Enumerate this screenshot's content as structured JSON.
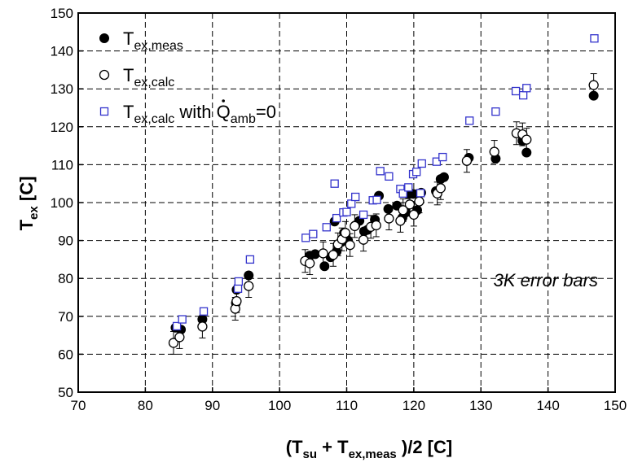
{
  "chart_data": {
    "type": "scatter",
    "title": "",
    "xlabel": {
      "pre": "(T",
      "sub1": "su",
      "mid": " + T",
      "sub2": "ex,meas",
      "post": " )/2 [C]"
    },
    "ylabel": {
      "pre": "T",
      "sub": "ex",
      "post": " [C]"
    },
    "xlim": [
      70,
      150
    ],
    "ylim": [
      50,
      150
    ],
    "xticks": [
      70,
      80,
      90,
      100,
      110,
      120,
      130,
      140,
      150
    ],
    "yticks": [
      50,
      60,
      70,
      80,
      90,
      100,
      110,
      120,
      130,
      140,
      150
    ],
    "grid": "dashed",
    "legend_position": "top-left",
    "annotation": "3K error bars",
    "error_bar": 3,
    "series": [
      {
        "name": "T_ex,meas",
        "label": {
          "pre": "T",
          "sub": "ex,meas",
          "post": ""
        },
        "marker": "filled-circle",
        "color": "#000000",
        "x": [
          84.5,
          85.3,
          88.5,
          93.5,
          93.6,
          95.4,
          104.5,
          105.3,
          106.7,
          107.6,
          108.2,
          108.5,
          109.2,
          109.6,
          110.2,
          111.3,
          111.9,
          112.6,
          113.1,
          114.2,
          114.8,
          116.2,
          117.5,
          118.3,
          118.8,
          119.2,
          119.9,
          120.5,
          121.1,
          123.3,
          124.0,
          124.5,
          128.2,
          132.2,
          136.2,
          136.8,
          146.8
        ],
        "y": [
          67.0,
          66.5,
          69.2,
          73.5,
          77.0,
          80.8,
          86.0,
          86.4,
          83.2,
          85.6,
          95.0,
          87.1,
          89.6,
          92.0,
          90.0,
          94.0,
          95.2,
          92.4,
          92.8,
          95.5,
          101.8,
          98.3,
          99.2,
          96.0,
          97.4,
          102.2,
          102.3,
          98.0,
          102.6,
          103.0,
          106.2,
          106.7,
          111.8,
          111.6,
          116.3,
          113.2,
          128.2
        ]
      },
      {
        "name": "T_ex,calc",
        "label": {
          "pre": "T",
          "sub": "ex,calc",
          "post": ""
        },
        "marker": "open-circle",
        "color": "#000000",
        "errorbars": true,
        "x": [
          84.2,
          85.1,
          88.5,
          93.4,
          93.6,
          95.4,
          103.8,
          104.5,
          106.5,
          108.0,
          108.7,
          109.3,
          109.8,
          110.5,
          111.2,
          112.5,
          113.6,
          114.4,
          116.3,
          118.0,
          118.4,
          119.4,
          120.0,
          120.8,
          123.5,
          124.0,
          127.9,
          132.0,
          135.3,
          136.2,
          136.8,
          146.8
        ],
        "y": [
          63.0,
          64.5,
          67.3,
          72.0,
          74.0,
          78.0,
          84.6,
          84.0,
          86.6,
          86.2,
          89.0,
          90.3,
          92.0,
          88.8,
          93.8,
          90.2,
          93.6,
          94.0,
          95.8,
          95.2,
          98.0,
          99.5,
          96.8,
          100.3,
          102.4,
          103.8,
          111.0,
          113.4,
          118.3,
          118.0,
          116.6,
          131.0
        ]
      },
      {
        "name": "T_ex,calc with Q_amb=0",
        "label": {
          "pre": "T",
          "sub": "ex,calc",
          "mid": " with ",
          "q": "Q",
          "qsub": "amb",
          "post": "=0"
        },
        "marker": "open-square",
        "color": "#3333cc",
        "x": [
          84.7,
          85.5,
          88.7,
          93.8,
          93.9,
          95.6,
          103.9,
          105.0,
          107.0,
          108.2,
          108.5,
          109.5,
          110.0,
          110.7,
          111.3,
          112.5,
          113.9,
          114.5,
          115.0,
          116.3,
          118.0,
          118.4,
          119.2,
          119.9,
          120.4,
          121.0,
          121.2,
          123.4,
          124.3,
          128.3,
          132.2,
          135.2,
          136.3,
          136.8,
          146.9
        ],
        "y": [
          67.4,
          69.2,
          71.3,
          77.3,
          79.2,
          85.0,
          90.7,
          91.7,
          93.5,
          105.0,
          95.9,
          97.4,
          97.5,
          99.7,
          101.5,
          96.8,
          100.6,
          100.7,
          108.3,
          106.9,
          103.6,
          102.4,
          104.0,
          107.5,
          108.1,
          102.5,
          110.3,
          110.8,
          112.0,
          121.6,
          124.0,
          129.4,
          128.3,
          130.2,
          143.3
        ]
      }
    ]
  }
}
